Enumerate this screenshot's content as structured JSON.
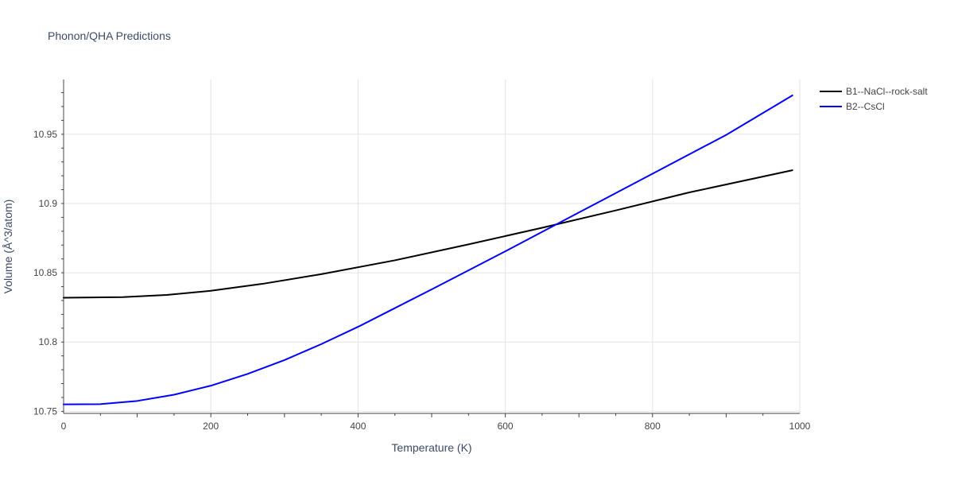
{
  "chart_data": {
    "type": "line",
    "title": "Phonon/QHA Predictions",
    "xlabel": "Temperature (K)",
    "ylabel": "Volume (Å^3/atom)",
    "xlim": [
      0,
      1000
    ],
    "ylim": [
      10.7485,
      10.9895
    ],
    "x_ticks": [
      0,
      200,
      400,
      600,
      800,
      1000
    ],
    "x_tick_labels": [
      "0",
      "200",
      "400",
      "600",
      "800",
      "1000"
    ],
    "y_ticks": [
      10.75,
      10.8,
      10.85,
      10.9,
      10.95
    ],
    "y_tick_labels": [
      "10.75",
      "10.8",
      "10.85",
      "10.9",
      "10.95"
    ],
    "grid": true,
    "legend_position": "top-right",
    "series": [
      {
        "name": "B1--NaCl--rock-salt",
        "color": "#000000",
        "x": [
          0,
          40,
          80,
          140,
          200,
          270,
          350,
          450,
          550,
          650,
          750,
          850,
          990
        ],
        "y": [
          10.832,
          10.8322,
          10.8324,
          10.834,
          10.837,
          10.842,
          10.849,
          10.859,
          10.8705,
          10.8825,
          10.895,
          10.908,
          10.924
        ]
      },
      {
        "name": "B2--CsCl",
        "color": "#0000ff",
        "x": [
          0,
          50,
          100,
          150,
          200,
          250,
          300,
          350,
          400,
          450,
          500,
          600,
          700,
          800,
          900,
          990
        ],
        "y": [
          10.755,
          10.7552,
          10.7575,
          10.762,
          10.7685,
          10.777,
          10.787,
          10.7985,
          10.811,
          10.8245,
          10.838,
          10.8655,
          10.8935,
          10.9215,
          10.9495,
          10.978
        ]
      }
    ]
  }
}
